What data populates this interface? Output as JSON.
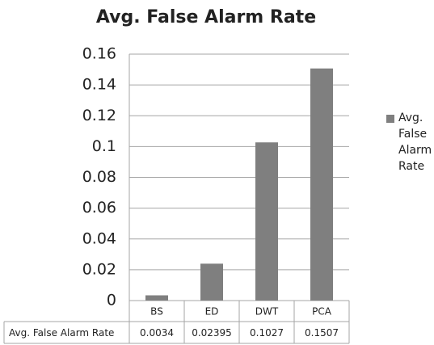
{
  "chart_data": {
    "type": "bar",
    "title": "Avg. False Alarm Rate",
    "categories": [
      "BS",
      "ED",
      "DWT",
      "PCA"
    ],
    "series": [
      {
        "name": "Avg. False Alarm Rate",
        "color": "#7f7f7f",
        "values": [
          0.0034,
          0.02395,
          0.1027,
          0.1507
        ]
      }
    ],
    "ylim": [
      0,
      0.16
    ],
    "yticks": [
      0,
      0.02,
      0.04,
      0.06,
      0.08,
      0.1,
      0.12,
      0.14,
      0.16
    ],
    "grid": true
  }
}
